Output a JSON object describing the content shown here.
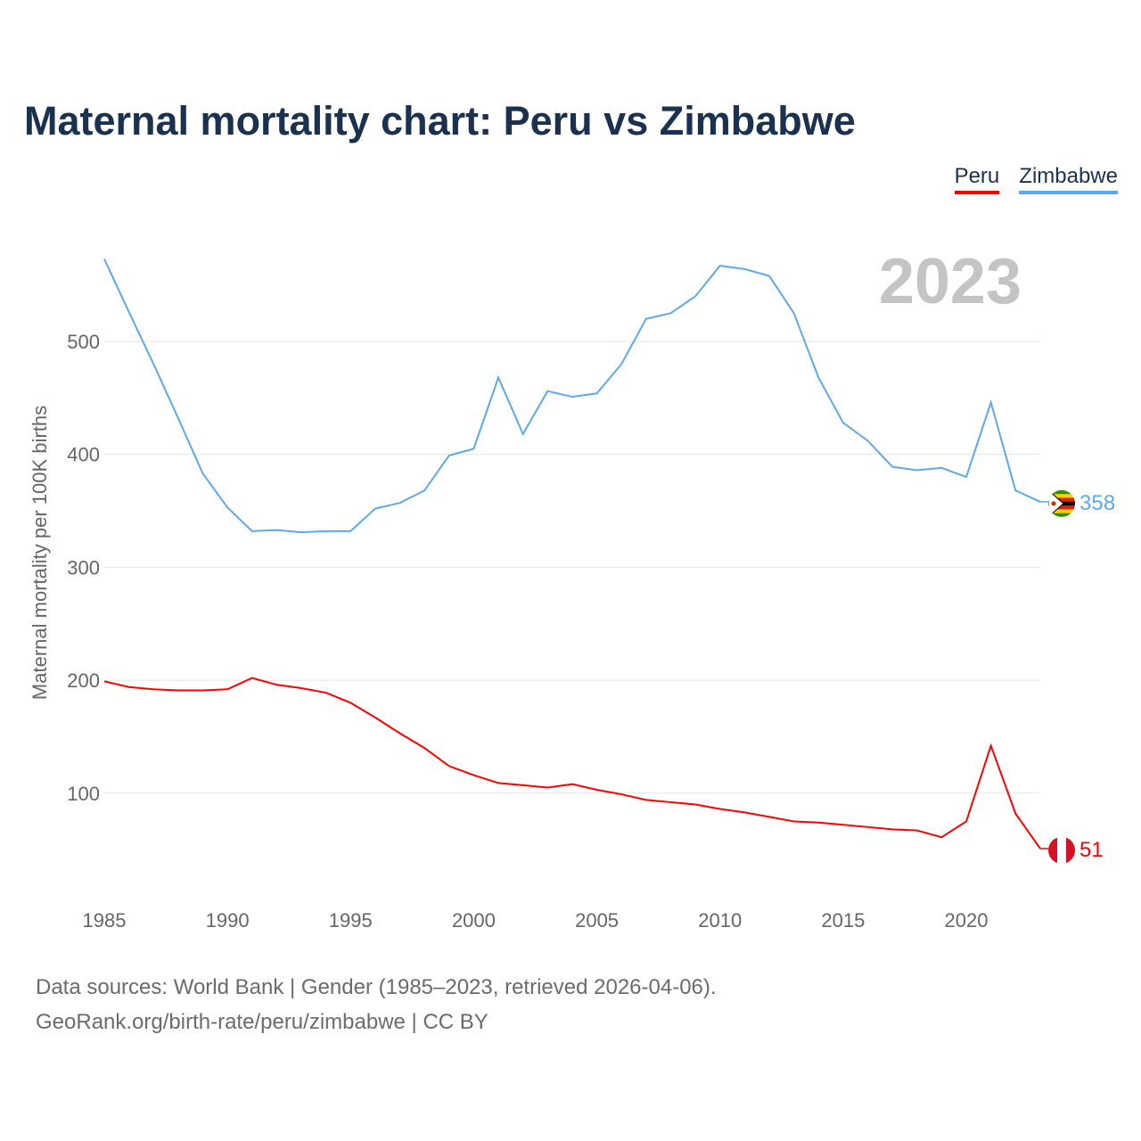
{
  "chart_data": {
    "type": "line",
    "title": "Maternal mortality chart: Peru vs Zimbabwe",
    "ylabel": "Maternal mortality per 100K births",
    "xlabel": "",
    "year_label": "2023",
    "x": [
      1985,
      1986,
      1987,
      1988,
      1989,
      1990,
      1991,
      1992,
      1993,
      1994,
      1995,
      1996,
      1997,
      1998,
      1999,
      2000,
      2001,
      2002,
      2003,
      2004,
      2005,
      2006,
      2007,
      2008,
      2009,
      2010,
      2011,
      2012,
      2013,
      2014,
      2015,
      2016,
      2017,
      2018,
      2019,
      2020,
      2021,
      2022,
      2023
    ],
    "xticks": [
      1985,
      1990,
      1995,
      2000,
      2005,
      2010,
      2015,
      2020
    ],
    "yticks": [
      100,
      200,
      300,
      400,
      500
    ],
    "xlim": [
      1985,
      2023
    ],
    "ylim": [
      0,
      600
    ],
    "grid": true,
    "legend_position": "top-right",
    "series": [
      {
        "name": "Peru",
        "color": "#ff0000",
        "end_label": "51",
        "values": [
          199,
          194,
          192,
          191,
          191,
          192,
          202,
          196,
          193,
          189,
          180,
          167,
          153,
          140,
          124,
          116,
          109,
          107,
          105,
          108,
          103,
          99,
          94,
          92,
          90,
          86,
          83,
          79,
          75,
          74,
          72,
          70,
          68,
          67,
          61,
          75,
          142,
          82,
          51
        ]
      },
      {
        "name": "Zimbabwe",
        "color": "#5ea8ec",
        "end_label": "358",
        "values": [
          573,
          526,
          480,
          432,
          383,
          353,
          332,
          333,
          331,
          332,
          332,
          352,
          357,
          368,
          399,
          405,
          468,
          418,
          456,
          451,
          454,
          480,
          520,
          525,
          540,
          567,
          564,
          558,
          525,
          468,
          428,
          412,
          389,
          386,
          388,
          380,
          446,
          368,
          358
        ]
      }
    ]
  },
  "footer": {
    "line1": "Data sources: World Bank | Gender (1985–2023, retrieved 2026-04-06).",
    "line2": "GeoRank.org/birth-rate/peru/zimbabwe | CC BY"
  }
}
